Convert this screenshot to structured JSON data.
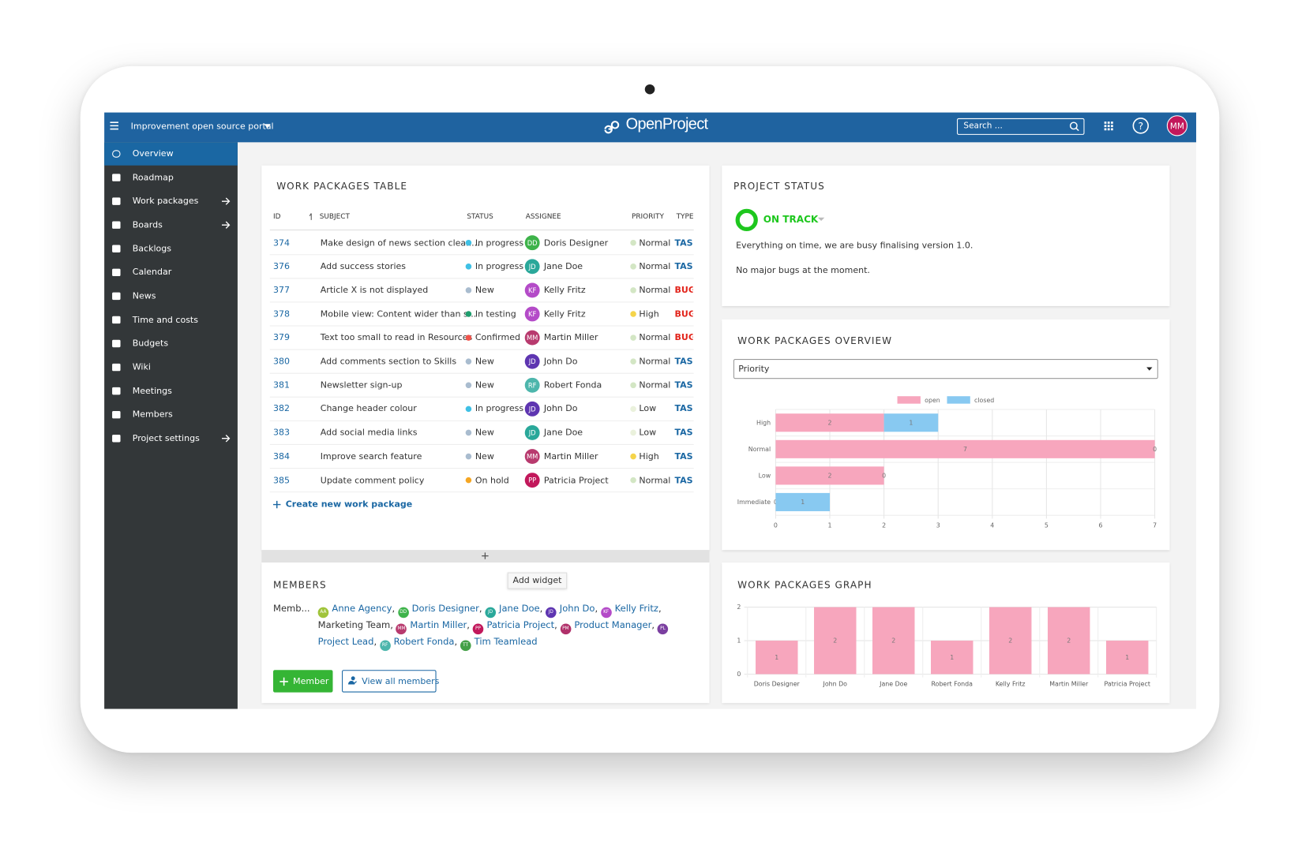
{
  "header": {
    "project": "Improvement open source portal",
    "logo": "OpenProject",
    "search": "Search ...",
    "help": "?",
    "avatar": "MM"
  },
  "sidebar": {
    "items": [
      "Overview",
      "Roadmap",
      "Work packages",
      "Boards",
      "Backlogs",
      "Calendar",
      "News",
      "Time and costs",
      "Budgets",
      "Wiki",
      "Meetings",
      "Members",
      "Project settings"
    ]
  },
  "work_packages_table": {
    "title": "WORK PACKAGES TABLE",
    "columns": [
      "ID",
      "SUBJECT",
      "STATUS",
      "ASSIGNEE",
      "PRIORITY",
      "TYPE"
    ],
    "rows": [
      {
        "id": 374,
        "subject": "Make design of news section clean...",
        "status": "In progress",
        "status_color": "#3fc0e5",
        "initials": "DD",
        "assignee": "Doris Designer",
        "avatar_color": "#3eb34a",
        "priority": "Normal",
        "priority_color": "#d3e6c4",
        "type": "TASK",
        "type_color": "#1a67a3"
      },
      {
        "id": 376,
        "subject": "Add success stories",
        "status": "In progress",
        "status_color": "#3fc0e5",
        "initials": "JD",
        "assignee": "Jane Doe",
        "avatar_color": "#2aa89a",
        "priority": "Normal",
        "priority_color": "#d3e6c4",
        "type": "TASK",
        "type_color": "#1a67a3"
      },
      {
        "id": 377,
        "subject": "Article X is not displayed",
        "status": "New",
        "status_color": "#a9bccf",
        "initials": "KF",
        "assignee": "Kelly Fritz",
        "avatar_color": "#b44bc8",
        "priority": "Normal",
        "priority_color": "#d3e6c4",
        "type": "BUG",
        "type_color": "#e2231a"
      },
      {
        "id": 378,
        "subject": "Mobile view: Content wider than s...",
        "status": "In testing",
        "status_color": "#1f9e6e",
        "initials": "KF",
        "assignee": "Kelly Fritz",
        "avatar_color": "#b44bc8",
        "priority": "High",
        "priority_color": "#f5d44a",
        "type": "BUG",
        "type_color": "#e2231a"
      },
      {
        "id": 379,
        "subject": "Text too small to read in Resources",
        "status": "Confirmed",
        "status_color": "#f0544c",
        "initials": "MM",
        "assignee": "Martin Miller",
        "avatar_color": "#b83a6e",
        "priority": "Normal",
        "priority_color": "#d3e6c4",
        "type": "BUG",
        "type_color": "#e2231a"
      },
      {
        "id": 380,
        "subject": "Add comments section to Skills",
        "status": "New",
        "status_color": "#a9bccf",
        "initials": "JD",
        "assignee": "John Do",
        "avatar_color": "#5e35b1",
        "priority": "Normal",
        "priority_color": "#d3e6c4",
        "type": "TASK",
        "type_color": "#1a67a3"
      },
      {
        "id": 381,
        "subject": "Newsletter sign-up",
        "status": "New",
        "status_color": "#a9bccf",
        "initials": "RF",
        "assignee": "Robert Fonda",
        "avatar_color": "#4db6ac",
        "priority": "Normal",
        "priority_color": "#d3e6c4",
        "type": "TASK",
        "type_color": "#1a67a3"
      },
      {
        "id": 382,
        "subject": "Change header colour",
        "status": "In progress",
        "status_color": "#3fc0e5",
        "initials": "JD",
        "assignee": "John Do",
        "avatar_color": "#5e35b1",
        "priority": "Low",
        "priority_color": "#eaf1dc",
        "type": "TASK",
        "type_color": "#1a67a3"
      },
      {
        "id": 383,
        "subject": "Add social media links",
        "status": "New",
        "status_color": "#a9bccf",
        "initials": "JD",
        "assignee": "Jane Doe",
        "avatar_color": "#2aa89a",
        "priority": "Low",
        "priority_color": "#eaf1dc",
        "type": "TASK",
        "type_color": "#1a67a3"
      },
      {
        "id": 384,
        "subject": "Improve search feature",
        "status": "New",
        "status_color": "#a9bccf",
        "initials": "MM",
        "assignee": "Martin Miller",
        "avatar_color": "#b83a6e",
        "priority": "High",
        "priority_color": "#f5d44a",
        "type": "TASK",
        "type_color": "#1a67a3"
      },
      {
        "id": 385,
        "subject": "Update comment policy",
        "status": "On hold",
        "status_color": "#f5a623",
        "initials": "PP",
        "assignee": "Patricia Project",
        "avatar_color": "#c2185b",
        "priority": "Normal",
        "priority_color": "#d3e6c4",
        "type": "TASK",
        "type_color": "#1a67a3"
      }
    ],
    "create": "Create new work package"
  },
  "add_widget": "Add widget",
  "members": {
    "title": "MEMBERS",
    "label": "Memb...",
    "separator": ",",
    "list": [
      {
        "initials": "AA",
        "name": "Anne Agency",
        "color": "#a0c43a"
      },
      {
        "initials": "DD",
        "name": "Doris Designer",
        "color": "#3eb34a"
      },
      {
        "initials": "JD",
        "name": "Jane Doe",
        "color": "#2aa89a"
      },
      {
        "initials": "JD",
        "name": "John Do",
        "color": "#5e35b1"
      },
      {
        "initials": "KF",
        "name": "Kelly Fritz",
        "color": "#b44bc8"
      },
      {
        "name": "Marketing Team"
      },
      {
        "initials": "MM",
        "name": "Martin Miller",
        "color": "#b83a6e"
      },
      {
        "initials": "PP",
        "name": "Patricia Project",
        "color": "#c2185b"
      },
      {
        "initials": "PM",
        "name": "Product Manager",
        "color": "#b0306a"
      },
      {
        "initials": "PL",
        "name": "Project Lead",
        "color": "#7b3fa0"
      },
      {
        "initials": "RF",
        "name": "Robert Fonda",
        "color": "#4db6ac"
      },
      {
        "initials": "TT",
        "name": "Tim Teamlead",
        "color": "#43a047"
      }
    ],
    "buttons": [
      "Member",
      "View all members"
    ]
  },
  "project_status": {
    "title": "PROJECT STATUS",
    "status": "ON TRACK",
    "color": "#1ec71e",
    "lines": [
      "Everything on time, we are busy finalising version 1.0.",
      "No major bugs at the moment."
    ]
  },
  "work_packages_overview": {
    "title": "WORK PACKAGES OVERVIEW",
    "select": "Priority",
    "type": "bar",
    "stacked": true,
    "categories": [
      "High",
      "Normal",
      "Low",
      "Immediate"
    ],
    "series": [
      {
        "name": "open",
        "color": "#f7a6bd",
        "values": [
          2,
          7,
          2,
          0
        ]
      },
      {
        "name": "closed",
        "color": "#88c9f1",
        "values": [
          1,
          0,
          0,
          1
        ]
      }
    ],
    "xlim": [
      0,
      7
    ],
    "xticks": [
      0,
      1,
      2,
      3,
      4,
      5,
      6,
      7
    ],
    "grid": true
  },
  "work_packages_graph": {
    "title": "WORK PACKAGES GRAPH",
    "type": "bar",
    "categories": [
      "Doris Designer",
      "John Do",
      "Jane Doe",
      "Robert Fonda",
      "Kelly Fritz",
      "Martin Miller",
      "Patricia Project"
    ],
    "values": [
      1,
      2,
      2,
      1,
      2,
      2,
      1
    ],
    "color": "#f7a6bd",
    "ylim": [
      0,
      2
    ],
    "yticks": [
      0,
      1,
      2
    ],
    "grid": true
  }
}
